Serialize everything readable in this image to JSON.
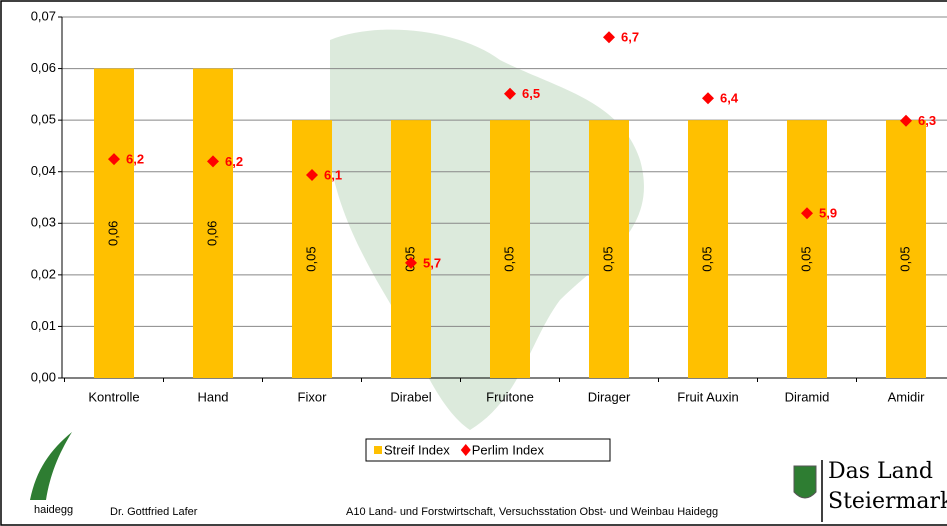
{
  "chart_data": {
    "type": "bar",
    "categories": [
      "Kontrolle",
      "Hand",
      "Fixor",
      "Dirabel",
      "Fruitone",
      "Dirager",
      "Fruit Auxin",
      "Diramid",
      "Amidir"
    ],
    "series": [
      {
        "name": "Streif Index",
        "type": "bar",
        "color": "#ffc000",
        "values": [
          0.06,
          0.06,
          0.05,
          0.05,
          0.05,
          0.05,
          0.05,
          0.05,
          0.05
        ],
        "value_labels": [
          "0,06",
          "0,06",
          "0,05",
          "0,05",
          "0,05",
          "0,05",
          "0,05",
          "0,05",
          "0,05"
        ]
      },
      {
        "name": "Perlim Index",
        "type": "scatter",
        "axis": "y2",
        "color": "#ff0000",
        "values": [
          6.17,
          6.16,
          6.1,
          5.71,
          6.46,
          6.71,
          6.44,
          5.93,
          6.34
        ],
        "value_labels": [
          "6,2",
          "6,2",
          "6,1",
          "5,7",
          "6,5",
          "6,7",
          "6,4",
          "5,9",
          "6,3"
        ]
      }
    ],
    "ylim": [
      0,
      0.07
    ],
    "yticks": [
      {
        "value": 0,
        "label": "0,00"
      },
      {
        "value": 0.01,
        "label": "0,01"
      },
      {
        "value": 0.02,
        "label": "0,02"
      },
      {
        "value": 0.03,
        "label": "0,03"
      },
      {
        "value": 0.04,
        "label": "0,04"
      },
      {
        "value": 0.05,
        "label": "0,05"
      },
      {
        "value": 0.06,
        "label": "0,06"
      },
      {
        "value": 0.07,
        "label": "0,07"
      }
    ],
    "y2lim": [
      5.2,
      6.8
    ],
    "grid": true,
    "legend": "bottom"
  },
  "footer": {
    "logo": "haidegg",
    "author": "Dr. Gottfried Lafer",
    "institution": "A10 Land- und Forstwirtschaft, Versuchsstation Obst- und Weinbau Haidegg",
    "brand_line1": "Das Land",
    "brand_line2": "Steiermark"
  }
}
